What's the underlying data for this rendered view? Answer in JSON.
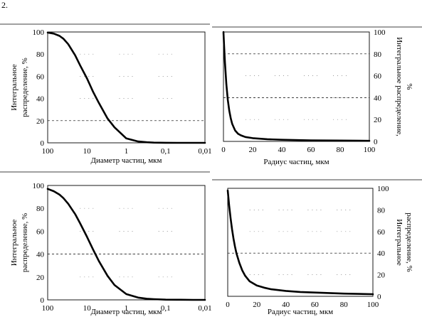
{
  "figure_label": "2.",
  "chart_data": [
    {
      "type": "line",
      "xscale": "log",
      "xreversed": true,
      "xlim": [
        100,
        0.01
      ],
      "ylim": [
        0,
        100
      ],
      "xticks": [
        "100",
        "10",
        "1",
        "0,1",
        "0,01"
      ],
      "yticks": [
        "0",
        "20",
        "40",
        "60",
        "80",
        "100"
      ],
      "xlabel": "Диаметр частиц, мкм",
      "ylabel": [
        "Интегральное",
        "распределение, %"
      ],
      "reference_line_y": 20,
      "grid": "dotted",
      "x": [
        100,
        70,
        50,
        40,
        30,
        20,
        15,
        10,
        7,
        5,
        3,
        2,
        1,
        0.5,
        0.3,
        0.2,
        0.1,
        0.05,
        0.02,
        0.01
      ],
      "y": [
        99.5,
        98.5,
        96.5,
        94,
        89,
        79,
        70,
        58,
        46,
        36,
        22,
        14,
        4,
        1.2,
        0.5,
        0.2,
        0.05,
        0,
        0,
        0
      ]
    },
    {
      "type": "line",
      "xscale": "linear",
      "xlim": [
        0,
        100
      ],
      "ylim": [
        0,
        100
      ],
      "xticks": [
        "0",
        "20",
        "40",
        "60",
        "80",
        "100"
      ],
      "yticks": [
        "0",
        "20",
        "40",
        "60",
        "80",
        "100"
      ],
      "xlabel": "Радиус частиц, мкм",
      "ylabel": [
        "Интегральное распределение,",
        "%"
      ],
      "reference_lines_y": [
        80,
        40
      ],
      "grid": "dotted",
      "x": [
        0,
        0.5,
        1,
        2,
        3,
        4,
        5,
        6,
        8,
        10,
        12,
        15,
        20,
        30,
        40,
        60,
        80,
        100
      ],
      "y": [
        100,
        86,
        72,
        52,
        38,
        28,
        21,
        16,
        10,
        7,
        5.5,
        4,
        3,
        2,
        1.5,
        1,
        0.8,
        0.5
      ]
    },
    {
      "type": "line",
      "xscale": "log",
      "xreversed": true,
      "xlim": [
        100,
        0.01
      ],
      "ylim": [
        0,
        100
      ],
      "xticks": [
        "100",
        "10",
        "1",
        "0,1",
        "0,01"
      ],
      "yticks": [
        "0",
        "20",
        "40",
        "60",
        "80",
        "100"
      ],
      "xlabel": "Диаметр частиц, мкм",
      "ylabel": [
        "Интегральное",
        "распределение, %"
      ],
      "reference_line_y": 40,
      "grid": "dotted",
      "x": [
        100,
        70,
        50,
        40,
        30,
        20,
        15,
        10,
        7,
        5,
        3,
        2,
        1,
        0.5,
        0.3,
        0.2,
        0.1,
        0.05,
        0.02,
        0.01
      ],
      "y": [
        97,
        95,
        92,
        89,
        84,
        75,
        67,
        55,
        44,
        34,
        21,
        13,
        5,
        2,
        1,
        0.6,
        0.2,
        0.1,
        0,
        0
      ]
    },
    {
      "type": "line",
      "xscale": "linear",
      "xlim": [
        0,
        100
      ],
      "ylim": [
        0,
        100
      ],
      "xticks": [
        "0",
        "20",
        "40",
        "60",
        "80",
        "100"
      ],
      "yticks": [
        "0",
        "20",
        "40",
        "60",
        "80",
        "100"
      ],
      "xlabel": "Радиус частиц, мкм",
      "ylabel": [
        "Интегральное",
        "распределение, %"
      ],
      "reference_line_y": 40,
      "grid": "dotted",
      "x": [
        0,
        1,
        2,
        3,
        4,
        5,
        6,
        8,
        10,
        12,
        15,
        20,
        25,
        30,
        40,
        50,
        60,
        80,
        100
      ],
      "y": [
        98,
        84,
        72,
        62,
        53,
        46,
        40,
        31,
        24,
        19,
        14,
        10,
        8,
        6.5,
        5,
        4,
        3.5,
        2.5,
        2
      ]
    }
  ]
}
